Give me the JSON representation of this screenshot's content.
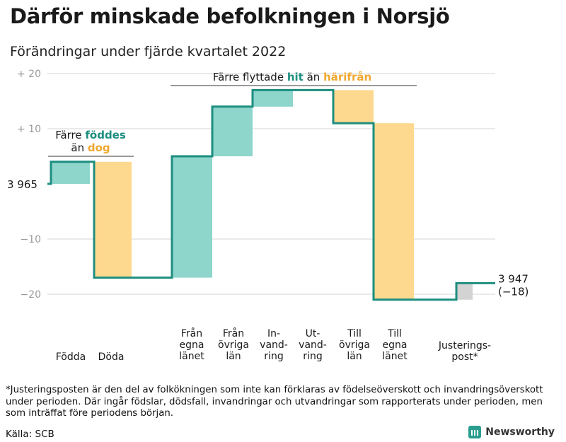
{
  "chart_data": {
    "type": "waterfall",
    "title": "Därför minskade befolkningen i Norsjö",
    "subtitle": "Förändringar under fjärde kvartalet 2022",
    "ylim": [
      -24,
      22
    ],
    "yticks": [
      {
        "value": 20,
        "label": "+ 20"
      },
      {
        "value": 10,
        "label": "+ 10"
      },
      {
        "value": -10,
        "label": "−10"
      },
      {
        "value": -20,
        "label": "−20"
      }
    ],
    "start": {
      "value": 3965,
      "label": "3 965"
    },
    "end": {
      "value": 3947,
      "label": "3 947",
      "change_label": "(−18)"
    },
    "steps": [
      {
        "key": "fodda",
        "label_lines": [
          "Födda"
        ],
        "value": 4,
        "kind": "in"
      },
      {
        "key": "doda",
        "label_lines": [
          "Döda"
        ],
        "value": -21,
        "kind": "out"
      },
      {
        "key": "fran_egna",
        "label_lines": [
          "Från",
          "egna",
          "länet"
        ],
        "value": 22,
        "kind": "in"
      },
      {
        "key": "fran_ovriga",
        "label_lines": [
          "Från",
          "övriga",
          "län"
        ],
        "value": 9,
        "kind": "in"
      },
      {
        "key": "invandring",
        "label_lines": [
          "In-",
          "vand-",
          "ring"
        ],
        "value": 3,
        "kind": "in"
      },
      {
        "key": "utvandring",
        "label_lines": [
          "Ut-",
          "vand-",
          "ring"
        ],
        "value": 0,
        "kind": "out"
      },
      {
        "key": "till_ovriga",
        "label_lines": [
          "Till",
          "övriga",
          "län"
        ],
        "value": -6,
        "kind": "out"
      },
      {
        "key": "till_egna",
        "label_lines": [
          "Till",
          "egna",
          "länet"
        ],
        "value": -32,
        "kind": "out"
      },
      {
        "key": "justering",
        "label_lines": [
          "Justerings-",
          "post*"
        ],
        "value": 3,
        "kind": "adjust"
      }
    ],
    "annotations": [
      {
        "key": "births",
        "prefix": "Färre ",
        "highlight_in": "föddes",
        "line2_prefix": "än ",
        "highlight_out": "dog"
      },
      {
        "key": "moves",
        "prefix": "Färre flyttade ",
        "highlight_in": "hit",
        "middle": " än ",
        "highlight_out": "härifrån"
      }
    ],
    "colors": {
      "in": "#8ed5cc",
      "out": "#fdd98f",
      "adjust": "#d3d3d3",
      "line": "#1d8e7f",
      "grid": "#e3e3e3",
      "highlight_in": "#1d8e7f",
      "highlight_out": "#f0a830"
    }
  },
  "footnote": "*Justeringsposten är den del av folkökningen som inte kan förklaras av födelseöverskott och invandringsöverskott under perioden. Där ingår födslar, dödsfall, invandringar och utvandringar som rapporterats under perioden, men som inträffat före periodens början.",
  "source": "Källa: SCB",
  "brand": "Newsworthy"
}
